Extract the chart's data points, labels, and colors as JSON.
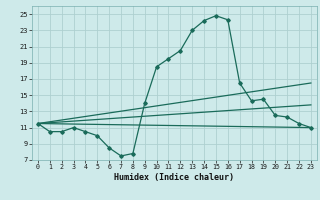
{
  "xlabel": "Humidex (Indice chaleur)",
  "bg_color": "#ceeaea",
  "grid_color": "#aed0d0",
  "line_color": "#1a6b5a",
  "xlim": [
    -0.5,
    23.5
  ],
  "ylim": [
    7,
    26
  ],
  "yticks": [
    7,
    9,
    11,
    13,
    15,
    17,
    19,
    21,
    23,
    25
  ],
  "xticks": [
    0,
    1,
    2,
    3,
    4,
    5,
    6,
    7,
    8,
    9,
    10,
    11,
    12,
    13,
    14,
    15,
    16,
    17,
    18,
    19,
    20,
    21,
    22,
    23
  ],
  "series1_x": [
    0,
    1,
    2,
    3,
    4,
    5,
    6,
    7,
    8,
    9,
    10,
    11,
    12,
    13,
    14,
    15,
    16,
    17,
    18,
    19,
    20,
    21,
    22,
    23
  ],
  "series1_y": [
    11.5,
    10.5,
    10.5,
    11.0,
    10.5,
    10.0,
    8.5,
    7.5,
    7.8,
    14.0,
    18.5,
    19.5,
    20.5,
    23.0,
    24.2,
    24.8,
    24.3,
    16.5,
    14.3,
    14.5,
    12.5,
    12.3,
    11.5,
    11.0
  ],
  "series2_x": [
    0,
    23
  ],
  "series2_y": [
    11.5,
    11.0
  ],
  "series3_x": [
    0,
    23
  ],
  "series3_y": [
    11.5,
    13.8
  ],
  "series4_x": [
    0,
    23
  ],
  "series4_y": [
    11.5,
    16.5
  ]
}
